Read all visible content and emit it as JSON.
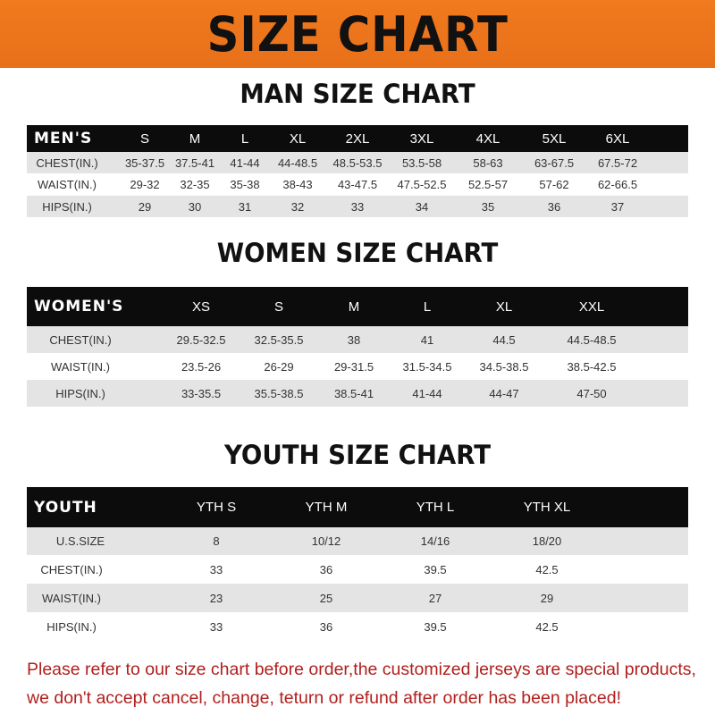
{
  "banner": {
    "title": "SIZE CHART",
    "color": "#f07a1e"
  },
  "men": {
    "title": "MAN SIZE CHART",
    "header": [
      "MEN'S",
      "S",
      "M",
      "L",
      "XL",
      "2XL",
      "3XL",
      "4XL",
      "5XL",
      "6XL"
    ],
    "rows": [
      [
        "CHEST(IN.)",
        "35-37.5",
        "37.5-41",
        "41-44",
        "44-48.5",
        "48.5-53.5",
        "53.5-58",
        "58-63",
        "63-67.5",
        "67.5-72"
      ],
      [
        "WAIST(IN.)",
        "29-32",
        "32-35",
        "35-38",
        "38-43",
        "43-47.5",
        "47.5-52.5",
        "52.5-57",
        "57-62",
        "62-66.5"
      ],
      [
        "HIPS(IN.)",
        "29",
        "30",
        "31",
        "32",
        "33",
        "34",
        "35",
        "36",
        "37"
      ]
    ]
  },
  "women": {
    "title": "WOMEN SIZE CHART",
    "header": [
      "WOMEN'S",
      "XS",
      "S",
      "M",
      "L",
      "XL",
      "XXL"
    ],
    "rows": [
      [
        "CHEST(IN.)",
        "29.5-32.5",
        "32.5-35.5",
        "38",
        "41",
        "44.5",
        "44.5-48.5"
      ],
      [
        "WAIST(IN.)",
        "23.5-26",
        "26-29",
        "29-31.5",
        "31.5-34.5",
        "34.5-38.5",
        "38.5-42.5"
      ],
      [
        "HIPS(IN.)",
        "33-35.5",
        "35.5-38.5",
        "38.5-41",
        "41-44",
        "44-47",
        "47-50"
      ]
    ]
  },
  "youth": {
    "title": "YOUTH SIZE CHART",
    "header": [
      "YOUTH",
      "YTH S",
      "YTH M",
      "YTH L",
      "YTH XL"
    ],
    "rows": [
      [
        "U.S.SIZE",
        "8",
        "10/12",
        "14/16",
        "18/20"
      ],
      [
        "CHEST(IN.)",
        "33",
        "36",
        "39.5",
        "42.5"
      ],
      [
        "WAIST(IN.)",
        "23",
        "25",
        "27",
        "29"
      ],
      [
        "HIPS(IN.)",
        "33",
        "36",
        "39.5",
        "42.5"
      ]
    ]
  },
  "notice": {
    "line1": "Please refer to our size chart before order,the customized jerseys are special products,",
    "line2": "we don't accept cancel, change, teturn or refund after order has been placed!",
    "color": "#b0201e"
  }
}
